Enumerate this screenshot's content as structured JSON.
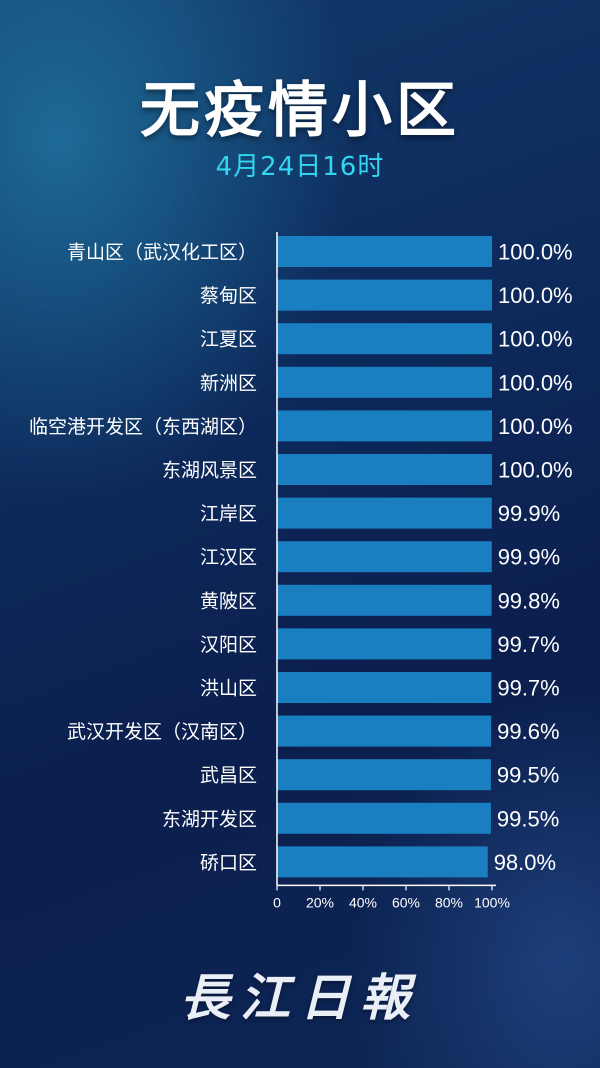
{
  "title": "无疫情小区",
  "subtitle": "4月24日16时",
  "logo_text": "長江日報",
  "colors": {
    "bar": "#1a7fc0",
    "subtitle": "#33d6f0",
    "text": "#ffffff"
  },
  "chart_data": {
    "type": "bar",
    "orientation": "horizontal",
    "categories": [
      "青山区（武汉化工区）",
      "蔡甸区",
      "江夏区",
      "新洲区",
      "临空港开发区（东西湖区）",
      "东湖风景区",
      "江岸区",
      "江汉区",
      "黄陂区",
      "汉阳区",
      "洪山区",
      "武汉开发区（汉南区）",
      "武昌区",
      "东湖开发区",
      "硚口区"
    ],
    "values": [
      100.0,
      100.0,
      100.0,
      100.0,
      100.0,
      100.0,
      99.9,
      99.9,
      99.8,
      99.7,
      99.7,
      99.6,
      99.5,
      99.5,
      98.0
    ],
    "value_labels": [
      "100.0%",
      "100.0%",
      "100.0%",
      "100.0%",
      "100.0%",
      "100.0%",
      "99.9%",
      "99.9%",
      "99.8%",
      "99.7%",
      "99.7%",
      "99.6%",
      "99.5%",
      "99.5%",
      "98.0%"
    ],
    "x_ticks": [
      "0",
      "20%",
      "40%",
      "60%",
      "80%",
      "100%"
    ],
    "xlim": [
      0,
      100
    ],
    "grid": false,
    "legend": "none"
  }
}
